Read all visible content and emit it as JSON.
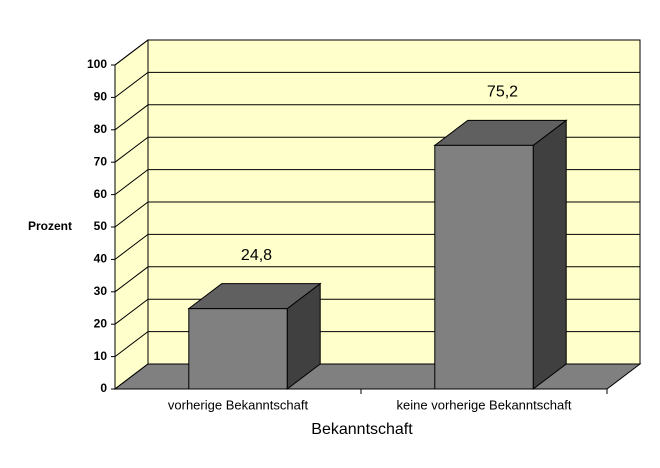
{
  "chart_data": {
    "type": "bar3d",
    "categories": [
      "vorherige Bekanntschaft",
      "keine vorherige Bekanntschaft"
    ],
    "values": [
      24.8,
      75.2
    ],
    "value_labels": [
      "24,8",
      "75,2"
    ],
    "color": "#808080",
    "x_label": "Bekanntschaft",
    "y_label": "Prozent",
    "ylim": [
      0,
      100
    ],
    "yticks": [
      0,
      10,
      20,
      30,
      40,
      50,
      60,
      70,
      80,
      90,
      100
    ],
    "grid": true,
    "wall_color": "#ffffcc",
    "floor_color": "#808080"
  }
}
